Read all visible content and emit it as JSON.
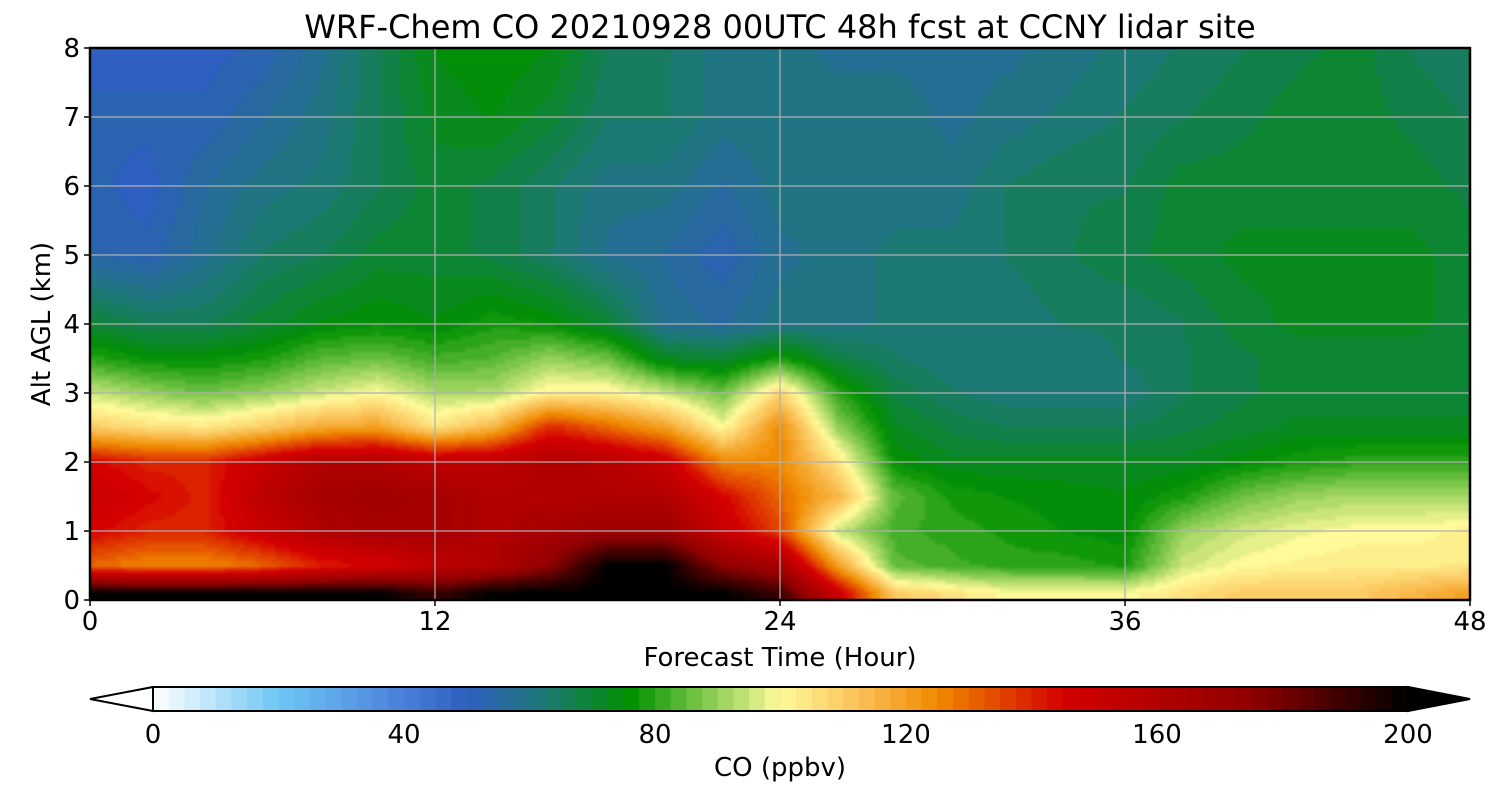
{
  "chart_data": {
    "type": "heatmap",
    "title": "WRF-Chem CO  20210928 00UTC 48h fcst at CCNY lidar site",
    "xlabel": "Forecast Time (Hour)",
    "ylabel": "Alt AGL (km)",
    "xlim": [
      0,
      48
    ],
    "ylim": [
      0,
      8
    ],
    "xticks": [
      0,
      12,
      24,
      36,
      48
    ],
    "yticks": [
      0,
      1,
      2,
      3,
      4,
      5,
      6,
      7,
      8
    ],
    "grid": true,
    "x": [
      0,
      2,
      4,
      6,
      8,
      10,
      12,
      14,
      16,
      18,
      20,
      22,
      24,
      26,
      28,
      30,
      32,
      34,
      36,
      38,
      40,
      42,
      44,
      46,
      48
    ],
    "y": [
      0.1,
      0.5,
      1.0,
      1.5,
      2.0,
      2.5,
      3.0,
      3.5,
      4.0,
      5.0,
      6.0,
      7.0,
      8.0
    ],
    "z": [
      [
        200,
        200,
        200,
        200,
        200,
        200,
        190,
        200,
        200,
        200,
        200,
        200,
        190,
        150,
        110,
        105,
        100,
        100,
        100,
        105,
        110,
        110,
        110,
        115,
        120
      ],
      [
        130,
        125,
        125,
        130,
        140,
        145,
        155,
        160,
        175,
        200,
        200,
        175,
        165,
        120,
        85,
        82,
        80,
        80,
        78,
        95,
        100,
        102,
        103,
        103,
        104
      ],
      [
        145,
        140,
        140,
        150,
        160,
        165,
        165,
        160,
        165,
        170,
        170,
        150,
        135,
        95,
        82,
        80,
        78,
        76,
        75,
        90,
        95,
        98,
        100,
        100,
        102
      ],
      [
        150,
        145,
        140,
        155,
        165,
        168,
        165,
        160,
        160,
        160,
        160,
        145,
        130,
        115,
        85,
        78,
        76,
        75,
        74,
        78,
        86,
        90,
        92,
        92,
        92
      ],
      [
        145,
        140,
        140,
        150,
        160,
        160,
        155,
        155,
        160,
        158,
        150,
        125,
        125,
        105,
        76,
        72,
        72,
        72,
        72,
        72,
        75,
        78,
        80,
        80,
        80
      ],
      [
        110,
        106,
        104,
        110,
        118,
        120,
        105,
        115,
        140,
        130,
        120,
        100,
        125,
        90,
        72,
        68,
        66,
        66,
        66,
        68,
        70,
        72,
        72,
        72,
        72
      ],
      [
        95,
        90,
        86,
        90,
        95,
        100,
        92,
        92,
        102,
        102,
        95,
        86,
        108,
        80,
        68,
        64,
        62,
        62,
        62,
        66,
        68,
        70,
        70,
        70,
        70
      ],
      [
        80,
        76,
        76,
        78,
        84,
        86,
        82,
        84,
        90,
        86,
        72,
        70,
        78,
        68,
        64,
        62,
        62,
        62,
        64,
        66,
        68,
        70,
        70,
        70,
        70
      ],
      [
        70,
        66,
        66,
        70,
        74,
        76,
        74,
        78,
        76,
        70,
        58,
        56,
        60,
        60,
        62,
        62,
        62,
        64,
        64,
        66,
        70,
        72,
        72,
        72,
        70
      ],
      [
        54,
        52,
        58,
        64,
        66,
        70,
        70,
        68,
        64,
        58,
        56,
        52,
        58,
        60,
        62,
        62,
        64,
        66,
        68,
        70,
        72,
        72,
        72,
        72,
        70
      ],
      [
        52,
        50,
        56,
        60,
        62,
        66,
        70,
        68,
        64,
        60,
        60,
        56,
        60,
        60,
        60,
        60,
        64,
        66,
        66,
        70,
        70,
        70,
        70,
        70,
        68
      ],
      [
        52,
        52,
        52,
        56,
        60,
        66,
        72,
        74,
        70,
        64,
        64,
        60,
        60,
        60,
        60,
        58,
        60,
        62,
        64,
        66,
        68,
        70,
        70,
        68,
        66
      ],
      [
        50,
        50,
        50,
        52,
        58,
        66,
        74,
        76,
        74,
        66,
        64,
        60,
        60,
        58,
        58,
        58,
        58,
        60,
        62,
        64,
        66,
        68,
        70,
        66,
        64
      ]
    ],
    "colorbar": {
      "label": "CO  (ppbv)",
      "min": 0,
      "max": 200,
      "ticks": [
        0,
        40,
        80,
        120,
        160,
        200
      ],
      "extend": "both",
      "stops": [
        {
          "value": 0,
          "color": "#ffffff"
        },
        {
          "value": 20,
          "color": "#6ec6f5"
        },
        {
          "value": 40,
          "color": "#4a7fd8"
        },
        {
          "value": 50,
          "color": "#2f5fc0"
        },
        {
          "value": 62,
          "color": "#1e7878"
        },
        {
          "value": 76,
          "color": "#009000"
        },
        {
          "value": 86,
          "color": "#6cc040"
        },
        {
          "value": 100,
          "color": "#fffa9a"
        },
        {
          "value": 112,
          "color": "#fbc35a"
        },
        {
          "value": 125,
          "color": "#f08a00"
        },
        {
          "value": 145,
          "color": "#d40000"
        },
        {
          "value": 175,
          "color": "#900000"
        },
        {
          "value": 200,
          "color": "#000000"
        }
      ]
    }
  }
}
